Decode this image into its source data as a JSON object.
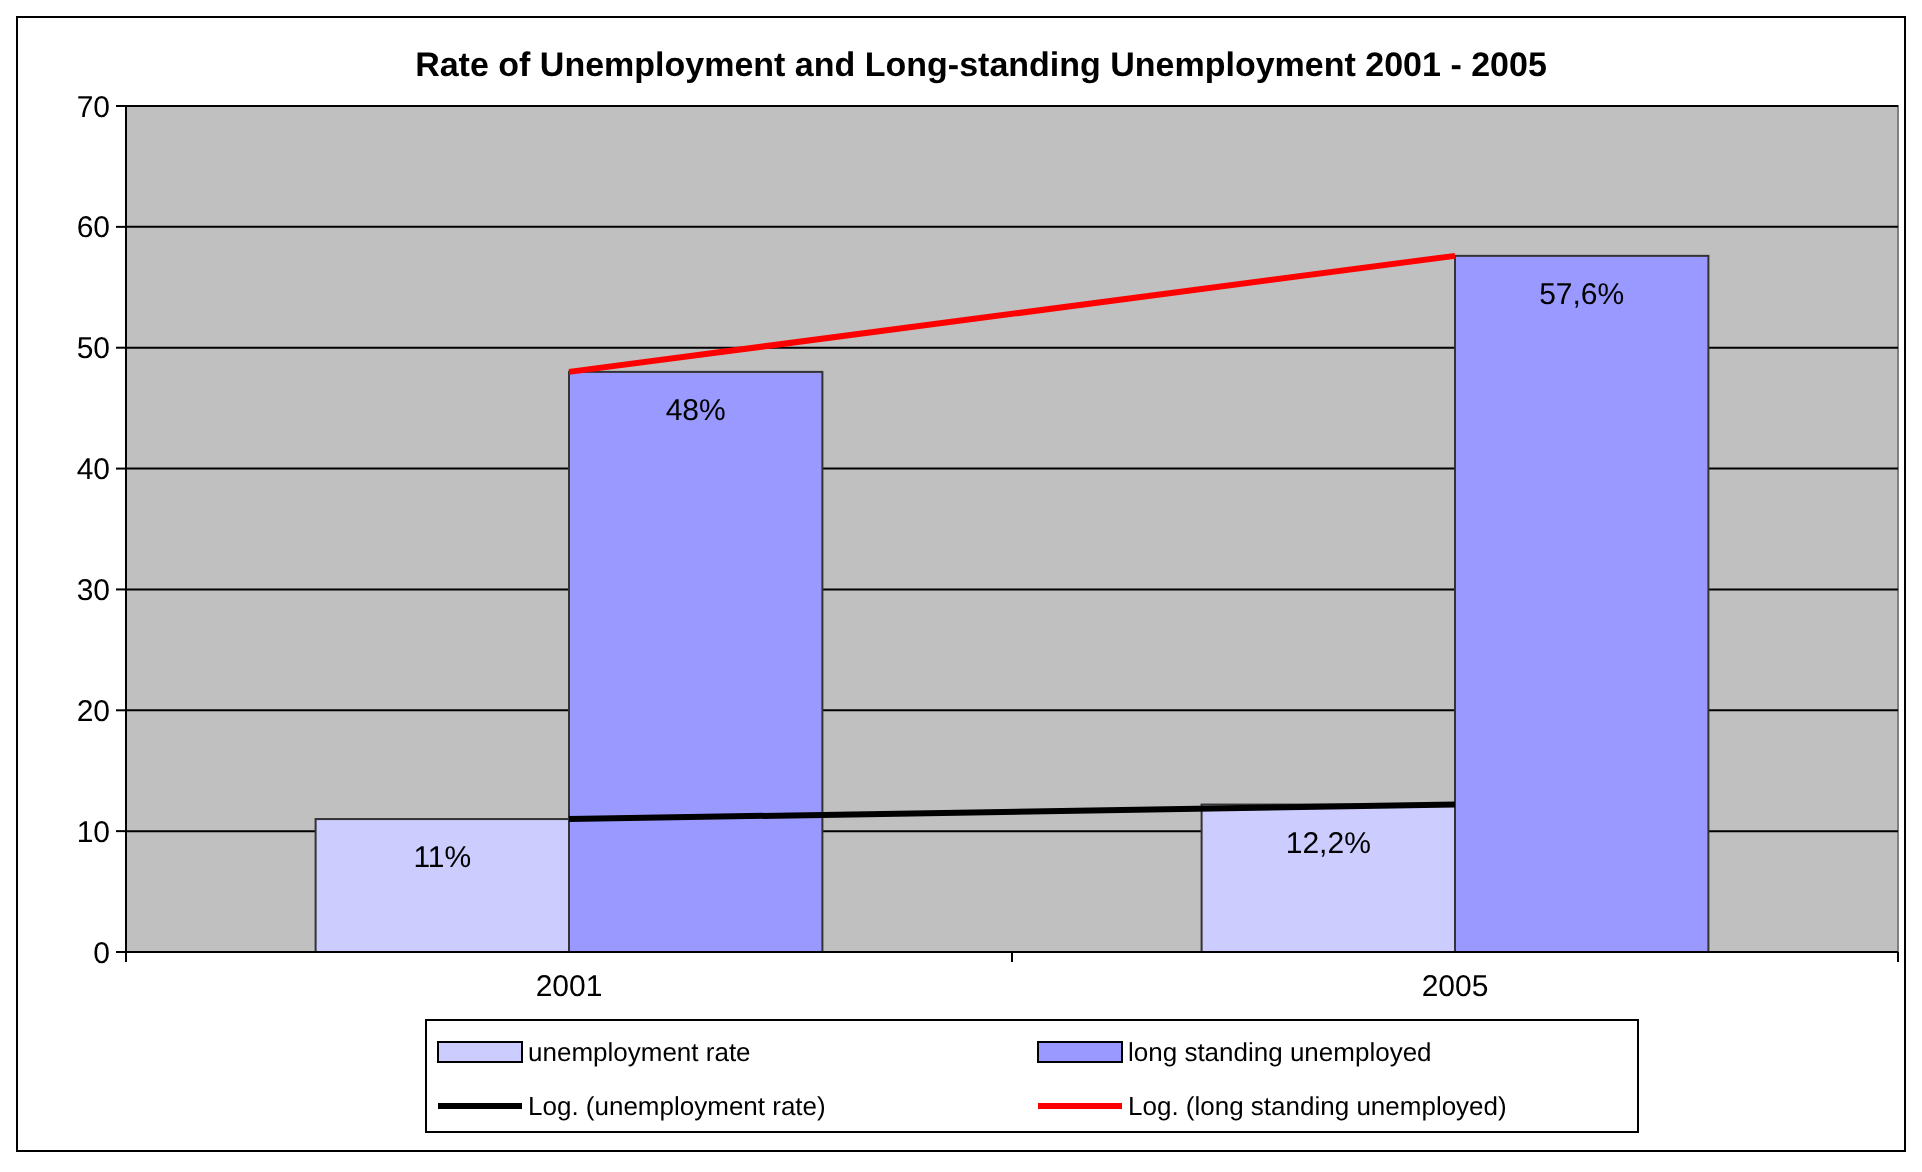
{
  "chart_data": {
    "type": "bar",
    "title": "Rate of Unemployment and Long-standing Unemployment 2001 - 2005",
    "categories": [
      "2001",
      "2005"
    ],
    "series": [
      {
        "name": "unemployment rate",
        "color": "#ccccff",
        "values": [
          11,
          12.2
        ],
        "value_labels": [
          "11%",
          "12,2%"
        ]
      },
      {
        "name": "long standing unemployed",
        "color": "#9999ff",
        "values": [
          48,
          57.6
        ],
        "value_labels": [
          "48%",
          "57,6%"
        ]
      },
      {
        "name": "Log. (unemployment rate)",
        "type": "line",
        "color": "#000000",
        "values": [
          11,
          12.2
        ]
      },
      {
        "name": "Log. (long standing unemployed)",
        "type": "line",
        "color": "#ff0000",
        "values": [
          48,
          57.6
        ]
      }
    ],
    "ylim": [
      0,
      70
    ],
    "yticks": [
      0,
      10,
      20,
      30,
      40,
      50,
      60,
      70
    ],
    "grid": "y",
    "legend": "bottom"
  }
}
